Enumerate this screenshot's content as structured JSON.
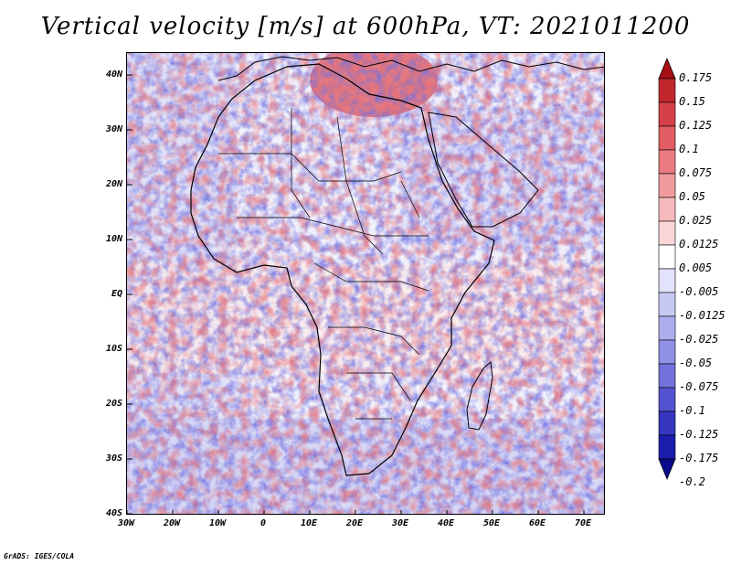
{
  "title": "Vertical velocity [m/s] at 600hPa, VT: 2021011200",
  "credit": "GrADS: IGES/COLA",
  "map": {
    "region": "Africa",
    "lat_range": [
      -40,
      45
    ],
    "lon_range": [
      -30,
      75
    ],
    "lat_ticks": [
      "40N",
      "30N",
      "20N",
      "10N",
      "EQ",
      "10S",
      "20S",
      "30S",
      "40S"
    ],
    "lon_ticks": [
      "30W",
      "20W",
      "10W",
      "0",
      "10E",
      "20E",
      "30E",
      "40E",
      "50E",
      "60E",
      "70E"
    ]
  },
  "colorbar": {
    "labels": [
      "0.175",
      "0.15",
      "0.125",
      "0.1",
      "0.075",
      "0.05",
      "0.025",
      "0.0125",
      "0.005",
      "-0.005",
      "-0.0125",
      "-0.025",
      "-0.05",
      "-0.075",
      "-0.1",
      "-0.125",
      "-0.175",
      "-0.2"
    ],
    "colors": [
      "#a50f15",
      "#c1272d",
      "#d6404a",
      "#e25c63",
      "#eb7a80",
      "#f19a9e",
      "#f6b9bb",
      "#fad6d7",
      "#ffffff",
      "#e2e2fa",
      "#c8c8f4",
      "#adadee",
      "#9090e6",
      "#7272dc",
      "#5353d0",
      "#3535c0",
      "#1c1cac",
      "#0a0a8c"
    ]
  }
}
